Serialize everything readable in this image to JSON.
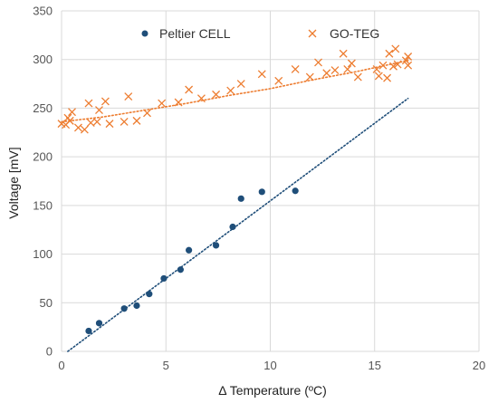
{
  "chart_data": {
    "type": "scatter",
    "xlabel": "Δ Temperature (ºC)",
    "ylabel": "Voltage [mV]",
    "xlim": [
      0,
      20
    ],
    "ylim": [
      0,
      350
    ],
    "x_ticks": [
      0,
      5,
      10,
      15,
      20
    ],
    "y_ticks": [
      0,
      50,
      100,
      150,
      200,
      250,
      300,
      350
    ],
    "grid": "both",
    "legend_placement": "top-center",
    "series": [
      {
        "name": "Peltier CELL",
        "marker": "circle",
        "color": "#1f4e79",
        "x": [
          1.3,
          1.8,
          3.0,
          3.6,
          4.2,
          4.9,
          5.7,
          6.1,
          7.4,
          8.2,
          8.6,
          9.6,
          11.2
        ],
        "y": [
          21,
          29,
          44,
          47,
          59,
          75,
          84,
          104,
          109,
          128,
          157,
          164,
          165
        ],
        "trendline": {
          "type": "linear",
          "x": [
            0.3,
            16.6
          ],
          "y": [
            0,
            260
          ]
        }
      },
      {
        "name": "GO-TEG",
        "marker": "x",
        "color": "#ed7d31",
        "x": [
          0.0,
          0.2,
          0.3,
          0.4,
          0.5,
          0.8,
          1.1,
          1.3,
          1.4,
          1.7,
          1.8,
          2.1,
          2.3,
          3.0,
          3.2,
          3.6,
          4.1,
          4.8,
          5.6,
          6.1,
          6.7,
          7.4,
          8.1,
          8.6,
          9.6,
          10.4,
          11.2,
          11.9,
          12.3,
          12.7,
          13.1,
          13.5,
          13.7,
          13.9,
          14.2,
          15.1,
          15.2,
          15.4,
          15.6,
          15.7,
          15.9,
          16.0,
          16.1,
          16.5,
          16.6,
          16.6
        ],
        "y": [
          234,
          233,
          240,
          237,
          246,
          230,
          228,
          255,
          235,
          236,
          248,
          257,
          234,
          236,
          262,
          237,
          245,
          255,
          256,
          269,
          260,
          264,
          268,
          275,
          285,
          278,
          290,
          282,
          297,
          286,
          289,
          306,
          290,
          296,
          282,
          290,
          283,
          294,
          281,
          306,
          293,
          311,
          295,
          299,
          303,
          294
        ],
        "trendline": {
          "type": "polynomial",
          "x": [
            0,
            2,
            4,
            6,
            8,
            10,
            12,
            14,
            16.6
          ],
          "y": [
            236,
            241,
            248,
            255,
            263,
            270,
            279,
            287,
            299
          ]
        }
      }
    ]
  }
}
